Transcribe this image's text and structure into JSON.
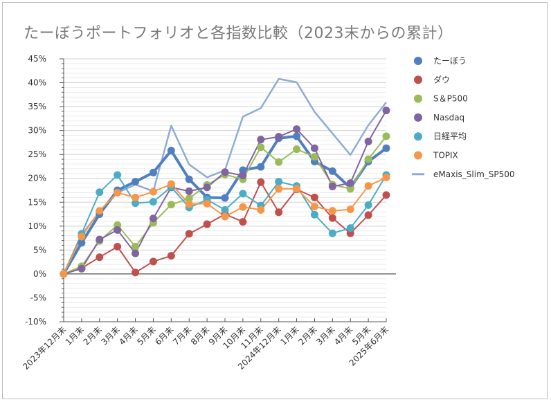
{
  "chart_data": {
    "type": "line",
    "title": "たーぼうポートフォリオと各指数比較（2023末からの累計）",
    "categories": [
      "2023年12月末",
      "1月末",
      "2月末",
      "3月末",
      "4月末",
      "5月末",
      "6月末",
      "7月末",
      "8月末",
      "9月末",
      "10月末",
      "11月末",
      "2024年12月末",
      "1月末",
      "2月末",
      "3月末",
      "4月末",
      "5月末",
      "2025年6月末"
    ],
    "ylim": [
      -10,
      45
    ],
    "yticks": [
      "-10%",
      "-5%",
      "0%",
      "5%",
      "10%",
      "15%",
      "20%",
      "25%",
      "30%",
      "35%",
      "40%",
      "45%"
    ],
    "grid": true,
    "legend_position": "right",
    "series": [
      {
        "name": "たーぼう",
        "color": "#4f7fc0",
        "marker": true,
        "width": 4,
        "values": [
          0,
          6.5,
          12.5,
          17.5,
          19.3,
          21.2,
          25.8,
          19.8,
          16.0,
          15.9,
          21.7,
          22.4,
          28.4,
          28.8,
          23.5,
          21.5,
          18.0,
          23.5,
          26.3
        ]
      },
      {
        "name": "ダウ",
        "color": "#c0504d",
        "marker": true,
        "width": 2,
        "values": [
          0,
          1.2,
          3.5,
          5.7,
          0.3,
          2.6,
          3.8,
          8.4,
          10.4,
          12.5,
          10.9,
          19.2,
          12.9,
          17.7,
          16.0,
          11.7,
          8.5,
          12.3,
          16.5
        ]
      },
      {
        "name": "S＆P500",
        "color": "#9bbb59",
        "marker": true,
        "width": 2,
        "values": [
          0,
          1.6,
          6.9,
          10.2,
          5.7,
          10.7,
          14.5,
          15.8,
          18.6,
          20.8,
          19.8,
          26.5,
          23.4,
          26.1,
          24.5,
          18.7,
          17.8,
          24.0,
          28.8
        ]
      },
      {
        "name": "Nasdaq",
        "color": "#8064a2",
        "marker": true,
        "width": 2,
        "values": [
          0,
          1.1,
          7.2,
          9.2,
          4.3,
          11.6,
          18.1,
          17.3,
          18.1,
          21.3,
          20.6,
          28.1,
          28.7,
          30.3,
          26.3,
          18.3,
          19.0,
          27.7,
          34.2
        ]
      },
      {
        "name": "日経平均",
        "color": "#4bacc6",
        "marker": true,
        "width": 2,
        "values": [
          0,
          8.4,
          17.1,
          20.7,
          14.8,
          15.1,
          18.2,
          13.9,
          15.5,
          13.4,
          16.8,
          14.3,
          19.3,
          18.4,
          12.4,
          8.5,
          9.6,
          14.4,
          20.7
        ]
      },
      {
        "name": "TOPIX",
        "color": "#f79646",
        "marker": true,
        "width": 2,
        "values": [
          0,
          7.8,
          13.2,
          17.0,
          16.0,
          17.2,
          18.8,
          14.6,
          14.7,
          12.0,
          14.0,
          13.4,
          17.8,
          17.8,
          14.1,
          13.2,
          13.5,
          18.4,
          20.2
        ]
      },
      {
        "name": "eMaxis_Slim_SP500",
        "color": "#8eacd6",
        "marker": false,
        "width": 2.5,
        "values": [
          0,
          8.2,
          13.0,
          17.0,
          18.7,
          17.3,
          31.0,
          22.9,
          20.2,
          21.7,
          32.9,
          34.7,
          40.8,
          40.1,
          33.9,
          29.4,
          24.9,
          31.1,
          35.9
        ]
      }
    ]
  }
}
